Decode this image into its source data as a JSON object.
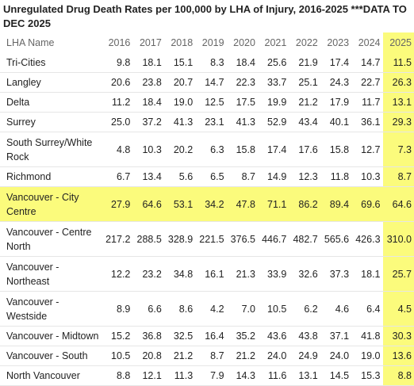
{
  "title": "Unregulated Drug Death Rates per 100,000 by LHA of Injury, 2016-2025 ***DATA TO DEC 2025",
  "table": {
    "header": [
      "LHA Name",
      "2016",
      "2017",
      "2018",
      "2019",
      "2020",
      "2021",
      "2022",
      "2023",
      "2024",
      "2025"
    ],
    "rows": [
      [
        "Tri-Cities",
        "9.8",
        "18.1",
        "15.1",
        "8.3",
        "18.4",
        "25.6",
        "21.9",
        "17.4",
        "14.7",
        "11.5"
      ],
      [
        "Langley",
        "20.6",
        "23.8",
        "20.7",
        "14.7",
        "22.3",
        "33.7",
        "25.1",
        "24.3",
        "22.7",
        "26.3"
      ],
      [
        "Delta",
        "11.2",
        "18.4",
        "19.0",
        "12.5",
        "17.5",
        "19.9",
        "21.2",
        "17.9",
        "11.7",
        "13.1"
      ],
      [
        "Surrey",
        "25.0",
        "37.2",
        "41.3",
        "23.1",
        "41.3",
        "52.9",
        "43.4",
        "40.1",
        "36.1",
        "29.3"
      ],
      [
        "South Surrey/White Rock",
        "4.8",
        "10.3",
        "20.2",
        "6.3",
        "15.8",
        "17.4",
        "17.6",
        "15.8",
        "12.7",
        "7.3"
      ],
      [
        "Richmond",
        "6.7",
        "13.4",
        "5.6",
        "6.5",
        "8.7",
        "14.9",
        "12.3",
        "11.8",
        "10.3",
        "8.7"
      ],
      [
        "Vancouver - City Centre",
        "27.9",
        "64.6",
        "53.1",
        "34.2",
        "47.8",
        "71.1",
        "86.2",
        "89.4",
        "69.6",
        "64.6"
      ],
      [
        "Vancouver - Centre North",
        "217.2",
        "288.5",
        "328.9",
        "221.5",
        "376.5",
        "446.7",
        "482.7",
        "565.6",
        "426.3",
        "310.0"
      ],
      [
        "Vancouver - Northeast",
        "12.2",
        "23.2",
        "34.8",
        "16.1",
        "21.3",
        "33.9",
        "32.6",
        "37.3",
        "18.1",
        "25.7"
      ],
      [
        "Vancouver - Westside",
        "8.9",
        "6.6",
        "8.6",
        "4.2",
        "7.0",
        "10.5",
        "6.2",
        "4.6",
        "6.4",
        "4.5"
      ],
      [
        "Vancouver - Midtown",
        "15.2",
        "36.8",
        "32.5",
        "16.4",
        "35.2",
        "43.6",
        "43.8",
        "37.1",
        "41.8",
        "30.3"
      ],
      [
        "Vancouver - South",
        "10.5",
        "20.8",
        "21.2",
        "8.7",
        "21.2",
        "24.0",
        "24.9",
        "24.0",
        "19.0",
        "13.6"
      ],
      [
        "North Vancouver",
        "8.8",
        "12.1",
        "11.3",
        "7.9",
        "14.3",
        "11.6",
        "13.1",
        "14.5",
        "15.3",
        "8.8"
      ]
    ]
  }
}
